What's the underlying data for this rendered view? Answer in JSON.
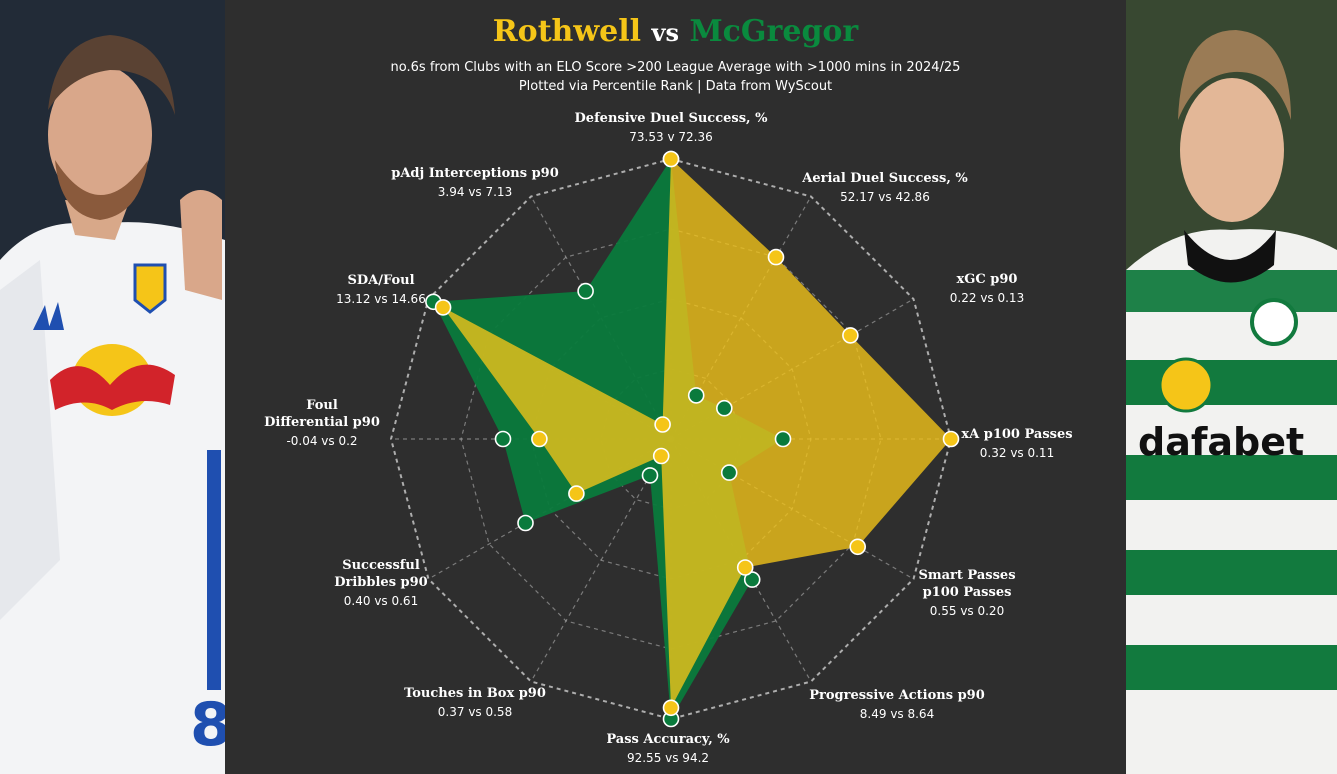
{
  "title": {
    "player_a": "Rothwell",
    "vs": "vs",
    "player_b": "McGregor"
  },
  "subtitle_line1": "no.6s from Clubs with an ELO Score >200 League Average  with >1000 mins in 2024/25",
  "subtitle_line2": "Plotted via Percentile Rank | Data from WyScout",
  "colors": {
    "player_a": "#f5c518",
    "player_b": "#0a7a3c",
    "background": "#2e2e2e",
    "grid": "#bbbbbb"
  },
  "photos": {
    "left": "leeds-player-photo",
    "right": "celtic-player-photo"
  },
  "chart_data": {
    "type": "radar",
    "scale": "percentile rank",
    "range": [
      0,
      100
    ],
    "legend": "title colours (Rothwell yellow, McGregor green)",
    "axes": [
      {
        "label": "Defensive Duel Success, %",
        "values": "73.53 v 72.36"
      },
      {
        "label": "Aerial Duel Success, %",
        "values": "52.17 vs 42.86"
      },
      {
        "label": "xGC p90",
        "values": "0.22 vs 0.13"
      },
      {
        "label": "xA p100 Passes",
        "values": "0.32 vs 0.11"
      },
      {
        "label": "Smart Passes p100 Passes",
        "values": "0.55 vs 0.20"
      },
      {
        "label": "Progressive Actions p90",
        "values": "8.49 vs 8.64"
      },
      {
        "label": "Pass Accuracy, %",
        "values": "92.55 vs 94.2"
      },
      {
        "label": "Touches in Box p90",
        "values": "0.37 vs 0.58"
      },
      {
        "label": "Successful Dribbles p90",
        "values": "0.40 vs 0.61"
      },
      {
        "label": "Foul Differential p90",
        "values": "-0.04 vs 0.2"
      },
      {
        "label": "SDA/Foul",
        "values": "13.12 vs 14.66"
      },
      {
        "label": "pAdj Interceptions p90",
        "values": "3.94 vs 7.13"
      }
    ],
    "series": [
      {
        "name": "Rothwell",
        "values": [
          100,
          75,
          74,
          100,
          77,
          53,
          96,
          7,
          39,
          47,
          94,
          6
        ]
      },
      {
        "name": "McGregor",
        "values": [
          100,
          18,
          22,
          40,
          24,
          58,
          100,
          15,
          60,
          60,
          98,
          61
        ]
      }
    ]
  }
}
